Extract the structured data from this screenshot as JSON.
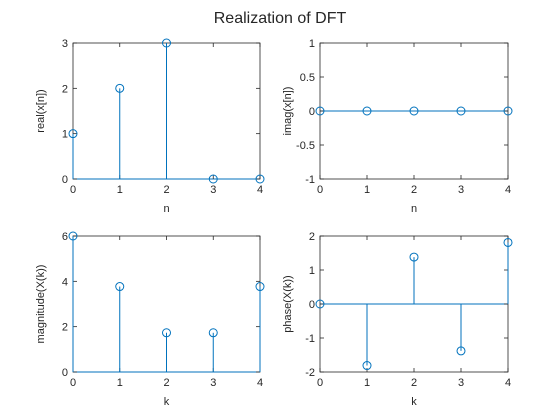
{
  "title": "Realization of DFT",
  "colors": {
    "stem": "#0072bd",
    "axis": "#262626",
    "background": "#ffffff"
  },
  "chart_data": [
    {
      "type": "stem",
      "x": [
        0,
        1,
        2,
        3,
        4
      ],
      "values": [
        1,
        2,
        3,
        0,
        0
      ],
      "xlabel": "n",
      "ylabel": "real(x[n])",
      "xlim": [
        0,
        4
      ],
      "ylim": [
        0,
        3
      ],
      "xticks": [
        "0",
        "1",
        "2",
        "3",
        "4"
      ],
      "yticks": [
        {
          "value": 0,
          "label": "0"
        },
        {
          "value": 1,
          "label": "1"
        },
        {
          "value": 2,
          "label": "2"
        },
        {
          "value": 3,
          "label": "3"
        }
      ],
      "grid": false
    },
    {
      "type": "stem",
      "x": [
        0,
        1,
        2,
        3,
        4
      ],
      "values": [
        0,
        0,
        0,
        0,
        0
      ],
      "xlabel": "n",
      "ylabel": "imag(x[n])",
      "xlim": [
        0,
        4
      ],
      "ylim": [
        -1,
        1
      ],
      "xticks": [
        "0",
        "1",
        "2",
        "3",
        "4"
      ],
      "yticks": [
        {
          "value": -1,
          "label": "-1"
        },
        {
          "value": -0.5,
          "label": "-0.5"
        },
        {
          "value": 0,
          "label": "0"
        },
        {
          "value": 0.5,
          "label": "0.5"
        },
        {
          "value": 1,
          "label": "1"
        }
      ],
      "grid": false
    },
    {
      "type": "stem",
      "x": [
        0,
        1,
        2,
        3,
        4
      ],
      "values": [
        6,
        3.77,
        1.73,
        1.73,
        3.77
      ],
      "xlabel": "k",
      "ylabel": "magnitude(X(k))",
      "xlim": [
        0,
        4
      ],
      "ylim": [
        0,
        6
      ],
      "xticks": [
        "0",
        "1",
        "2",
        "3",
        "4"
      ],
      "yticks": [
        {
          "value": 0,
          "label": "0"
        },
        {
          "value": 2,
          "label": "2"
        },
        {
          "value": 4,
          "label": "4"
        },
        {
          "value": 6,
          "label": "6"
        }
      ],
      "grid": false
    },
    {
      "type": "stem",
      "x": [
        0,
        1,
        2,
        3,
        4
      ],
      "values": [
        0,
        -1.81,
        1.38,
        -1.38,
        1.81
      ],
      "xlabel": "k",
      "ylabel": "phase(X(k))",
      "xlim": [
        0,
        4
      ],
      "ylim": [
        -2,
        2
      ],
      "xticks": [
        "0",
        "1",
        "2",
        "3",
        "4"
      ],
      "yticks": [
        {
          "value": -2,
          "label": "-2"
        },
        {
          "value": -1,
          "label": "-1"
        },
        {
          "value": 0,
          "label": "0"
        },
        {
          "value": 1,
          "label": "1"
        },
        {
          "value": 2,
          "label": "2"
        }
      ],
      "grid": false
    }
  ]
}
